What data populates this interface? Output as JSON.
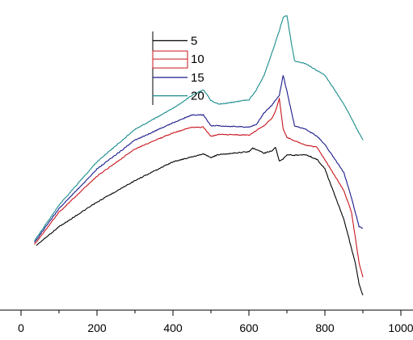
{
  "chart_data": {
    "type": "line",
    "xlim": [
      0,
      1000
    ],
    "ylim": [
      0,
      400
    ],
    "x_ticks": [
      0,
      200,
      400,
      600,
      800,
      1000
    ],
    "x_tick_labels": [
      "0",
      "200",
      "400",
      "600",
      "800",
      "1000"
    ],
    "y_axis_visible": false,
    "grid": false,
    "legend_position": "top-center",
    "legend_highlight": "10",
    "series": [
      {
        "name": "5",
        "color": "#000000",
        "x": [
          40,
          100,
          200,
          300,
          400,
          480,
          500,
          520,
          580,
          600,
          610,
          640,
          660,
          670,
          680,
          690,
          700,
          720,
          750,
          780,
          800,
          850,
          870,
          880,
          890,
          900
        ],
        "y": [
          74,
          100,
          134,
          164,
          190,
          201,
          196,
          200,
          203,
          204,
          209,
          202,
          205,
          210,
          191,
          194,
          200,
          199,
          200,
          193,
          180,
          110,
          70,
          50,
          20,
          5
        ]
      },
      {
        "name": "10",
        "color": "#c8161d",
        "x": [
          35,
          100,
          200,
          300,
          400,
          450,
          480,
          500,
          520,
          600,
          640,
          660,
          670,
          680,
          690,
          700,
          720,
          750,
          780,
          800,
          850,
          870,
          890,
          900
        ],
        "y": [
          75,
          120,
          170,
          208,
          230,
          238,
          238,
          225,
          228,
          227,
          240,
          250,
          260,
          278,
          236,
          224,
          219,
          213,
          210,
          193,
          150,
          120,
          50,
          30
        ]
      },
      {
        "name": "15",
        "color": "#1a1a8c",
        "x": [
          35,
          100,
          200,
          300,
          400,
          450,
          480,
          500,
          520,
          600,
          620,
          640,
          660,
          680,
          690,
          700,
          720,
          750,
          780,
          800,
          850,
          870,
          890,
          900
        ],
        "y": [
          78,
          125,
          180,
          220,
          244,
          255,
          255,
          240,
          240,
          238,
          242,
          258,
          268,
          282,
          310,
          288,
          240,
          235,
          225,
          214,
          175,
          140,
          100,
          98
        ]
      },
      {
        "name": "20",
        "color": "#1a8c8c",
        "x": [
          35,
          100,
          200,
          300,
          400,
          450,
          480,
          500,
          520,
          550,
          600,
          620,
          640,
          660,
          680,
          690,
          700,
          710,
          720,
          750,
          800,
          850,
          880,
          900
        ],
        "y": [
          80,
          130,
          190,
          235,
          264,
          282,
          290,
          275,
          270,
          272,
          276,
          290,
          310,
          340,
          372,
          390,
          393,
          360,
          330,
          326,
          310,
          270,
          240,
          220
        ]
      }
    ]
  }
}
